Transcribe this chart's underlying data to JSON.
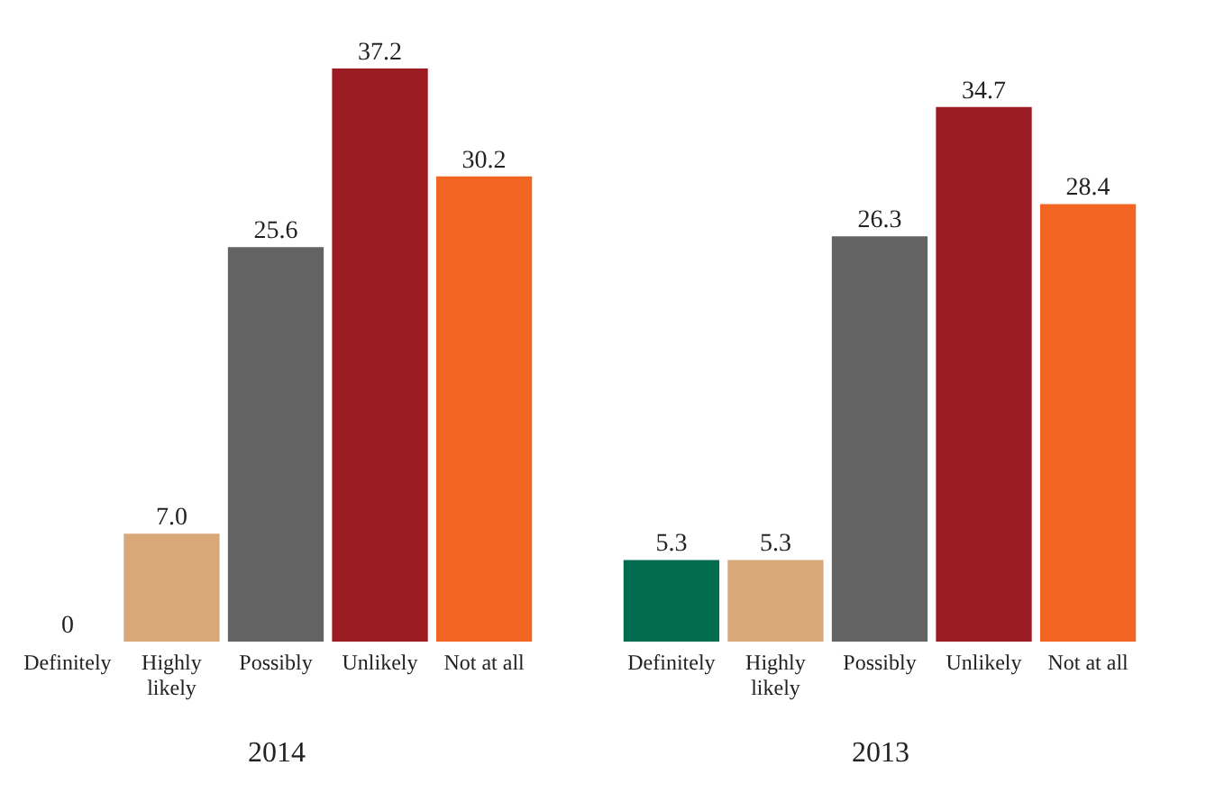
{
  "chart_data": [
    {
      "type": "bar",
      "categories": [
        "Definitely",
        "Highly likely",
        "Possibly",
        "Unlikely",
        "Not at all"
      ],
      "values": [
        0,
        7.0,
        25.6,
        37.2,
        30.2
      ],
      "colors": [
        "#006b4f",
        "#d8a878",
        "#636363",
        "#9b1b22",
        "#f26522"
      ],
      "value_labels": [
        "0",
        "7.0",
        "25.6",
        "37.2",
        "30.2"
      ],
      "xlabel": "2014"
    },
    {
      "type": "bar",
      "categories": [
        "Definitely",
        "Highly likely",
        "Possibly",
        "Unlikely",
        "Not at all"
      ],
      "values": [
        5.3,
        5.3,
        26.3,
        34.7,
        28.4
      ],
      "colors": [
        "#006b4f",
        "#d8a878",
        "#636363",
        "#9b1b22",
        "#f26522"
      ],
      "value_labels": [
        "5.3",
        "5.3",
        "26.3",
        "34.7",
        "28.4"
      ],
      "xlabel": "2013"
    }
  ]
}
